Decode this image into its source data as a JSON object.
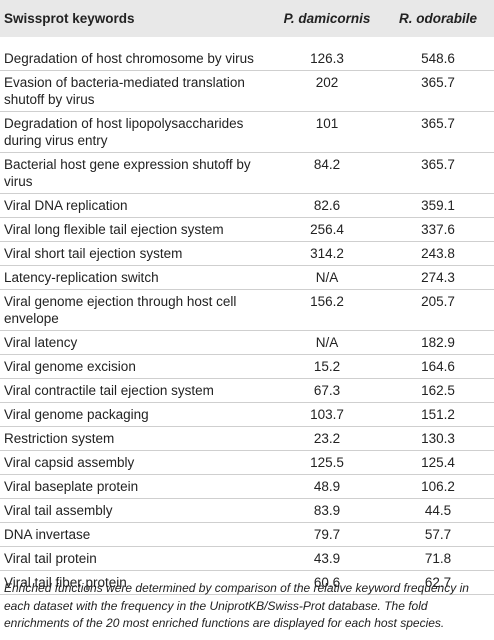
{
  "table": {
    "headers": [
      "Swissprot keywords",
      "P. damicornis",
      "R. odorabile"
    ],
    "rows": [
      {
        "keyword": "Degradation of host chromosome by virus",
        "p_damicornis": "126.3",
        "r_odorabile": "548.6"
      },
      {
        "keyword": "Evasion of bacteria-mediated translation shutoff by virus",
        "p_damicornis": "202",
        "r_odorabile": "365.7"
      },
      {
        "keyword": "Degradation of host lipopolysaccharides during virus entry",
        "p_damicornis": "101",
        "r_odorabile": "365.7"
      },
      {
        "keyword": "Bacterial host gene expression shutoff by virus",
        "p_damicornis": "84.2",
        "r_odorabile": "365.7"
      },
      {
        "keyword": "Viral DNA replication",
        "p_damicornis": "82.6",
        "r_odorabile": "359.1"
      },
      {
        "keyword": "Viral long flexible tail ejection system",
        "p_damicornis": "256.4",
        "r_odorabile": "337.6"
      },
      {
        "keyword": "Viral short tail ejection system",
        "p_damicornis": "314.2",
        "r_odorabile": "243.8"
      },
      {
        "keyword": "Latency-replication switch",
        "p_damicornis": "N/A",
        "r_odorabile": "274.3"
      },
      {
        "keyword": "Viral genome ejection through host cell envelope",
        "p_damicornis": "156.2",
        "r_odorabile": "205.7"
      },
      {
        "keyword": "Viral latency",
        "p_damicornis": "N/A",
        "r_odorabile": "182.9"
      },
      {
        "keyword": "Viral genome excision",
        "p_damicornis": "15.2",
        "r_odorabile": "164.6"
      },
      {
        "keyword": "Viral contractile tail ejection system",
        "p_damicornis": "67.3",
        "r_odorabile": "162.5"
      },
      {
        "keyword": "Viral genome packaging",
        "p_damicornis": "103.7",
        "r_odorabile": "151.2"
      },
      {
        "keyword": "Restriction system",
        "p_damicornis": "23.2",
        "r_odorabile": "130.3"
      },
      {
        "keyword": "Viral capsid assembly",
        "p_damicornis": "125.5",
        "r_odorabile": "125.4"
      },
      {
        "keyword": "Viral baseplate protein",
        "p_damicornis": "48.9",
        "r_odorabile": "106.2"
      },
      {
        "keyword": "Viral tail assembly",
        "p_damicornis": "83.9",
        "r_odorabile": "44.5"
      },
      {
        "keyword": "DNA invertase",
        "p_damicornis": "79.7",
        "r_odorabile": "57.7"
      },
      {
        "keyword": "Viral tail protein",
        "p_damicornis": "43.9",
        "r_odorabile": "71.8"
      },
      {
        "keyword": "Viral tail fiber protein",
        "p_damicornis": "60.6",
        "r_odorabile": "62.7"
      }
    ]
  },
  "footnote": "Enriched functions were determined by comparison of the relative keyword frequency in each dataset with the frequency in the UniprotKB/Swiss-Prot database. The fold enrichments of the 20 most enriched functions are displayed for each host species."
}
